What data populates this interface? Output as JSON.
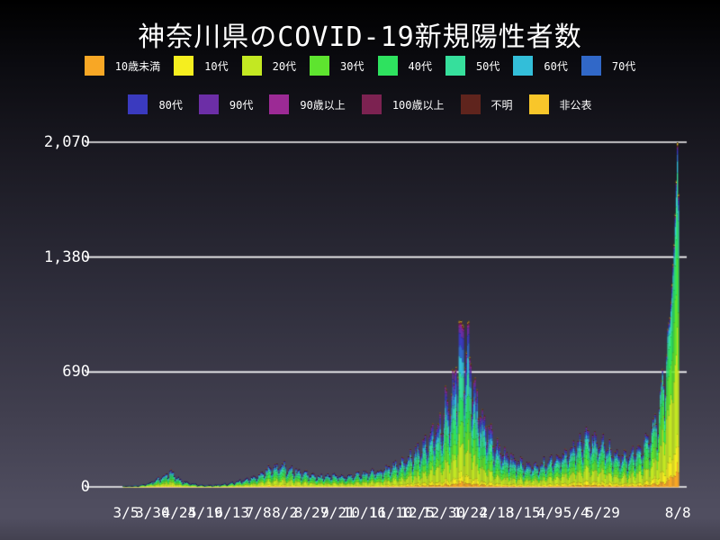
{
  "title": "神奈川県のCOVID-19新規陽性者数",
  "colors": {
    "background_top": "#000000",
    "background_bottom": "#504e60",
    "grid": "#ffffff",
    "text": "#ffffff"
  },
  "legend": {
    "rows": [
      [
        {
          "key": "age-under-10",
          "label": "10歳未満",
          "color": "#f8a725"
        },
        {
          "key": "age-10s",
          "label": "10代",
          "color": "#f5ee1f"
        },
        {
          "key": "age-20s",
          "label": "20代",
          "color": "#c3e822"
        },
        {
          "key": "age-30s",
          "label": "30代",
          "color": "#5ee42f"
        },
        {
          "key": "age-40s",
          "label": "40代",
          "color": "#2ee25f"
        },
        {
          "key": "age-50s",
          "label": "50代",
          "color": "#36df9c"
        },
        {
          "key": "age-60s",
          "label": "60代",
          "color": "#33bed9"
        },
        {
          "key": "age-70s",
          "label": "70代",
          "color": "#3168c8"
        }
      ],
      [
        {
          "key": "age-80s",
          "label": "80代",
          "color": "#3a3abf"
        },
        {
          "key": "age-90s",
          "label": "90代",
          "color": "#6c2ea6"
        },
        {
          "key": "age-over-90",
          "label": "90歳以上",
          "color": "#9c2a95"
        },
        {
          "key": "age-over-100",
          "label": "100歳以上",
          "color": "#7c2251"
        },
        {
          "key": "unknown",
          "label": "不明",
          "color": "#5f241d"
        },
        {
          "key": "undisclosed",
          "label": "非公表",
          "color": "#f8c62a"
        }
      ]
    ]
  },
  "chart_data": {
    "type": "stacked-bar-daily",
    "title": "神奈川県のCOVID-19新規陽性者数",
    "ylim": [
      0,
      2070
    ],
    "y_ticks": [
      {
        "value": 0,
        "label": "0"
      },
      {
        "value": 690,
        "label": "690"
      },
      {
        "value": 1380,
        "label": "1,380"
      },
      {
        "value": 2070,
        "label": "2,070"
      }
    ],
    "x_ticks": [
      {
        "day": 0,
        "label": "3/5"
      },
      {
        "day": 25,
        "label": "3/30"
      },
      {
        "day": 50,
        "label": "4/24"
      },
      {
        "day": 75,
        "label": "5/19"
      },
      {
        "day": 100,
        "label": "6/13"
      },
      {
        "day": 125,
        "label": "7/8"
      },
      {
        "day": 150,
        "label": "8/2"
      },
      {
        "day": 175,
        "label": "8/27"
      },
      {
        "day": 200,
        "label": "9/21"
      },
      {
        "day": 225,
        "label": "10/16"
      },
      {
        "day": 250,
        "label": "11/10"
      },
      {
        "day": 275,
        "label": "12/5"
      },
      {
        "day": 300,
        "label": "12/30"
      },
      {
        "day": 325,
        "label": "1/24"
      },
      {
        "day": 350,
        "label": "2/18"
      },
      {
        "day": 375,
        "label": "3/15"
      },
      {
        "day": 400,
        "label": "4/9"
      },
      {
        "day": 425,
        "label": "5/4"
      },
      {
        "day": 450,
        "label": "5/29"
      },
      {
        "day": 521,
        "label": "8/8"
      }
    ],
    "day_range": [
      -38,
      521
    ],
    "stack_order_note": "bottom-to-top follows legend order",
    "series": [
      {
        "name": "10歳未満",
        "color": "#f8a725"
      },
      {
        "name": "10代",
        "color": "#f5ee1f"
      },
      {
        "name": "20代",
        "color": "#c3e822"
      },
      {
        "name": "30代",
        "color": "#5ee42f"
      },
      {
        "name": "40代",
        "color": "#2ee25f"
      },
      {
        "name": "50代",
        "color": "#36df9c"
      },
      {
        "name": "60代",
        "color": "#33bed9"
      },
      {
        "name": "70代",
        "color": "#3168c8"
      },
      {
        "name": "80代",
        "color": "#3a3abf"
      },
      {
        "name": "90代",
        "color": "#6c2ea6"
      },
      {
        "name": "90歳以上",
        "color": "#9c2a95"
      },
      {
        "name": "100歳以上",
        "color": "#7c2251"
      },
      {
        "name": "不明",
        "color": "#5f241d"
      },
      {
        "name": "非公表",
        "color": "#f8c62a"
      }
    ],
    "envelope_keypoints": [
      [
        -38,
        0
      ],
      [
        -4,
        0
      ],
      [
        0,
        4
      ],
      [
        7,
        7
      ],
      [
        14,
        12
      ],
      [
        21,
        22
      ],
      [
        28,
        45
      ],
      [
        33,
        62
      ],
      [
        38,
        85
      ],
      [
        42,
        90
      ],
      [
        47,
        62
      ],
      [
        53,
        34
      ],
      [
        60,
        22
      ],
      [
        68,
        14
      ],
      [
        76,
        10
      ],
      [
        84,
        12
      ],
      [
        92,
        18
      ],
      [
        100,
        26
      ],
      [
        108,
        38
      ],
      [
        116,
        52
      ],
      [
        124,
        74
      ],
      [
        131,
        98
      ],
      [
        138,
        120
      ],
      [
        143,
        135
      ],
      [
        149,
        125
      ],
      [
        156,
        110
      ],
      [
        163,
        92
      ],
      [
        170,
        80
      ],
      [
        177,
        70
      ],
      [
        184,
        62
      ],
      [
        191,
        68
      ],
      [
        198,
        74
      ],
      [
        205,
        64
      ],
      [
        212,
        68
      ],
      [
        219,
        80
      ],
      [
        226,
        88
      ],
      [
        233,
        95
      ],
      [
        240,
        105
      ],
      [
        247,
        118
      ],
      [
        254,
        130
      ],
      [
        261,
        155
      ],
      [
        268,
        190
      ],
      [
        275,
        220
      ],
      [
        282,
        255
      ],
      [
        289,
        320
      ],
      [
        296,
        390
      ],
      [
        300,
        440
      ],
      [
        302,
        560
      ],
      [
        304,
        490
      ],
      [
        307,
        540
      ],
      [
        310,
        660
      ],
      [
        312,
        780
      ],
      [
        314,
        940
      ],
      [
        316,
        975
      ],
      [
        319,
        930
      ],
      [
        322,
        840
      ],
      [
        325,
        720
      ],
      [
        329,
        580
      ],
      [
        333,
        480
      ],
      [
        338,
        390
      ],
      [
        343,
        320
      ],
      [
        349,
        265
      ],
      [
        355,
        220
      ],
      [
        361,
        190
      ],
      [
        368,
        160
      ],
      [
        375,
        138
      ],
      [
        382,
        126
      ],
      [
        389,
        136
      ],
      [
        396,
        150
      ],
      [
        403,
        165
      ],
      [
        410,
        186
      ],
      [
        417,
        212
      ],
      [
        424,
        244
      ],
      [
        429,
        268
      ],
      [
        434,
        305
      ],
      [
        437,
        330
      ],
      [
        440,
        302
      ],
      [
        445,
        272
      ],
      [
        450,
        255
      ],
      [
        456,
        232
      ],
      [
        462,
        202
      ],
      [
        468,
        182
      ],
      [
        474,
        192
      ],
      [
        480,
        208
      ],
      [
        486,
        238
      ],
      [
        491,
        278
      ],
      [
        496,
        335
      ],
      [
        501,
        425
      ],
      [
        505,
        530
      ],
      [
        508,
        650
      ],
      [
        511,
        820
      ],
      [
        513,
        1010
      ],
      [
        515,
        1220
      ],
      [
        517,
        1460
      ],
      [
        518,
        1640
      ],
      [
        519,
        1840
      ],
      [
        520,
        2070
      ],
      [
        521,
        1760
      ]
    ],
    "weekly_pattern": [
      1.08,
      1.1,
      1.12,
      0.92,
      0.62,
      0.82,
      1.0
    ],
    "share_profiles": {
      "base": [
        0.035,
        0.07,
        0.235,
        0.165,
        0.15,
        0.125,
        0.075,
        0.055,
        0.045,
        0.025,
        0.009,
        0.003,
        0.004,
        0.004
      ],
      "winter": [
        0.03,
        0.05,
        0.19,
        0.15,
        0.14,
        0.13,
        0.09,
        0.075,
        0.065,
        0.04,
        0.017,
        0.006,
        0.008,
        0.009
      ],
      "final_wave": [
        0.05,
        0.095,
        0.3,
        0.21,
        0.155,
        0.1,
        0.04,
        0.018,
        0.012,
        0.006,
        0.002,
        0.001,
        0.005,
        0.006
      ]
    },
    "legend_position": "top",
    "grid": true
  }
}
